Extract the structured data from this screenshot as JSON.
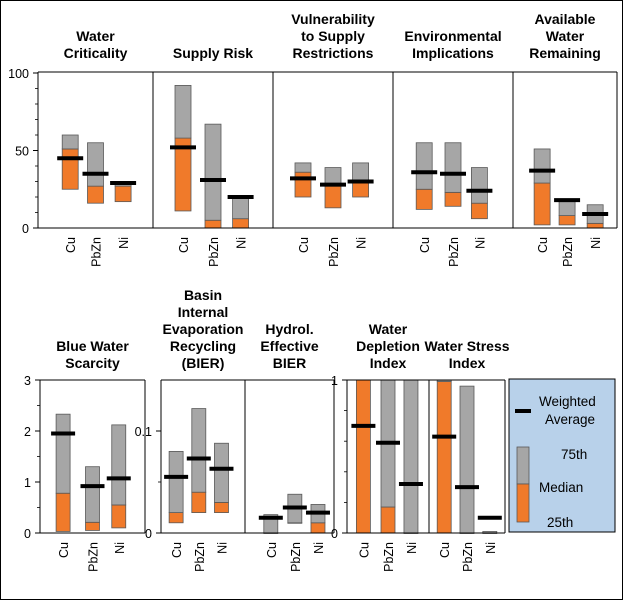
{
  "chart_data": [
    {
      "type": "bar",
      "panel": "top",
      "title": "Water Criticality",
      "categories": [
        "Cu",
        "PbZn",
        "Ni"
      ],
      "ylim": [
        0,
        100
      ],
      "yticks": [
        "0",
        "50",
        "100"
      ],
      "series": [
        {
          "name": "25th",
          "values": [
            25,
            16,
            17
          ]
        },
        {
          "name": "Median",
          "values": [
            51,
            27,
            27
          ]
        },
        {
          "name": "75th",
          "values": [
            60,
            55,
            28
          ]
        },
        {
          "name": "Weighted Average",
          "values": [
            45,
            35,
            29
          ]
        }
      ]
    },
    {
      "type": "bar",
      "panel": "top",
      "title": "Supply Risk",
      "categories": [
        "Cu",
        "PbZn",
        "Ni"
      ],
      "ylim": [
        0,
        100
      ],
      "series": [
        {
          "name": "25th",
          "values": [
            11,
            0,
            0
          ]
        },
        {
          "name": "Median",
          "values": [
            58,
            5,
            6
          ]
        },
        {
          "name": "75th",
          "values": [
            92,
            67,
            20
          ]
        },
        {
          "name": "Weighted Average",
          "values": [
            52,
            31,
            20
          ]
        }
      ]
    },
    {
      "type": "bar",
      "panel": "top",
      "title": "Vulnerability to Supply Restrictions",
      "categories": [
        "Cu",
        "PbZn",
        "Ni"
      ],
      "ylim": [
        0,
        100
      ],
      "series": [
        {
          "name": "25th",
          "values": [
            20,
            13,
            20
          ]
        },
        {
          "name": "Median",
          "values": [
            36,
            27,
            30
          ]
        },
        {
          "name": "75th",
          "values": [
            42,
            39,
            42
          ]
        },
        {
          "name": "Weighted Average",
          "values": [
            32,
            28,
            30
          ]
        }
      ]
    },
    {
      "type": "bar",
      "panel": "top",
      "title": "Environmental Implications",
      "categories": [
        "Cu",
        "PbZn",
        "Ni"
      ],
      "ylim": [
        0,
        100
      ],
      "series": [
        {
          "name": "25th",
          "values": [
            12,
            14,
            6
          ]
        },
        {
          "name": "Median",
          "values": [
            25,
            23,
            16
          ]
        },
        {
          "name": "75th",
          "values": [
            55,
            55,
            39
          ]
        },
        {
          "name": "Weighted Average",
          "values": [
            36,
            35,
            24
          ]
        }
      ]
    },
    {
      "type": "bar",
      "panel": "top",
      "title": "Available Water Remaining",
      "categories": [
        "Cu",
        "PbZn",
        "Ni"
      ],
      "ylim": [
        0,
        100
      ],
      "series": [
        {
          "name": "25th",
          "values": [
            2,
            2,
            0
          ]
        },
        {
          "name": "Median",
          "values": [
            29,
            8,
            3
          ]
        },
        {
          "name": "75th",
          "values": [
            51,
            17,
            15
          ]
        },
        {
          "name": "Weighted Average",
          "values": [
            37,
            18,
            9
          ]
        }
      ]
    },
    {
      "type": "bar",
      "panel": "bottom",
      "title": "Blue Water Scarcity",
      "categories": [
        "Cu",
        "PbZn",
        "Ni"
      ],
      "ylim": [
        0,
        3
      ],
      "yticks": [
        "0",
        "1",
        "2",
        "3"
      ],
      "series": [
        {
          "name": "25th",
          "values": [
            0.03,
            0.05,
            0.1
          ]
        },
        {
          "name": "Median",
          "values": [
            0.78,
            0.21,
            0.55
          ]
        },
        {
          "name": "75th",
          "values": [
            2.33,
            1.3,
            2.12
          ]
        },
        {
          "name": "Weighted Average",
          "values": [
            1.95,
            0.92,
            1.07
          ]
        }
      ]
    },
    {
      "type": "bar",
      "panel": "bottom",
      "title": "Basin Internal Evaporation Recycling (BIER)",
      "categories": [
        "Cu",
        "PbZn",
        "Ni"
      ],
      "ylim": [
        0,
        0.15
      ],
      "yticks": [
        "0",
        "0.1"
      ],
      "series": [
        {
          "name": "25th",
          "values": [
            0.01,
            0.02,
            0.02
          ]
        },
        {
          "name": "Median",
          "values": [
            0.02,
            0.04,
            0.03
          ]
        },
        {
          "name": "75th",
          "values": [
            0.08,
            0.122,
            0.088
          ]
        },
        {
          "name": "Weighted Average",
          "values": [
            0.055,
            0.073,
            0.063
          ]
        }
      ]
    },
    {
      "type": "bar",
      "panel": "bottom",
      "title": "Hydrol. Effective BIER",
      "categories": [
        "Cu",
        "PbZn",
        "Ni"
      ],
      "ylim": [
        0,
        0.15
      ],
      "series": [
        {
          "name": "25th",
          "values": [
            0,
            0.01,
            0
          ]
        },
        {
          "name": "Median",
          "values": [
            0,
            0.01,
            0.01
          ]
        },
        {
          "name": "75th",
          "values": [
            0.018,
            0.038,
            0.028
          ]
        },
        {
          "name": "Weighted Average",
          "values": [
            0.015,
            0.025,
            0.02
          ]
        }
      ]
    },
    {
      "type": "bar",
      "panel": "bottom",
      "title": "Water Depletion Index",
      "categories": [
        "Cu",
        "PbZn",
        "Ni"
      ],
      "ylim": [
        0,
        1
      ],
      "yticks": [
        "0",
        "1"
      ],
      "series": [
        {
          "name": "25th",
          "values": [
            0,
            0,
            0
          ]
        },
        {
          "name": "Median",
          "values": [
            1.0,
            0.17,
            0
          ]
        },
        {
          "name": "75th",
          "values": [
            1.0,
            1.0,
            1.0
          ]
        },
        {
          "name": "Weighted Average",
          "values": [
            0.7,
            0.59,
            0.32
          ]
        }
      ]
    },
    {
      "type": "bar",
      "panel": "bottom",
      "title": "Water Stress Index",
      "categories": [
        "Cu",
        "PbZn",
        "Ni"
      ],
      "ylim": [
        0,
        1
      ],
      "series": [
        {
          "name": "25th",
          "values": [
            0,
            0,
            0
          ]
        },
        {
          "name": "Median",
          "values": [
            0.99,
            0,
            0
          ]
        },
        {
          "name": "75th",
          "values": [
            1.0,
            0.96,
            0.01
          ]
        },
        {
          "name": "Weighted Average",
          "values": [
            0.63,
            0.3,
            0.1
          ]
        }
      ]
    }
  ],
  "legend": {
    "weighted_average": "Weighted Average",
    "p75": "75th",
    "median": "Median",
    "p25": "25th"
  },
  "colors": {
    "upper_box": "#a6a6a6",
    "lower_box": "#f07a2a",
    "average_marker": "#000000",
    "legend_background": "#b8d1ea"
  }
}
